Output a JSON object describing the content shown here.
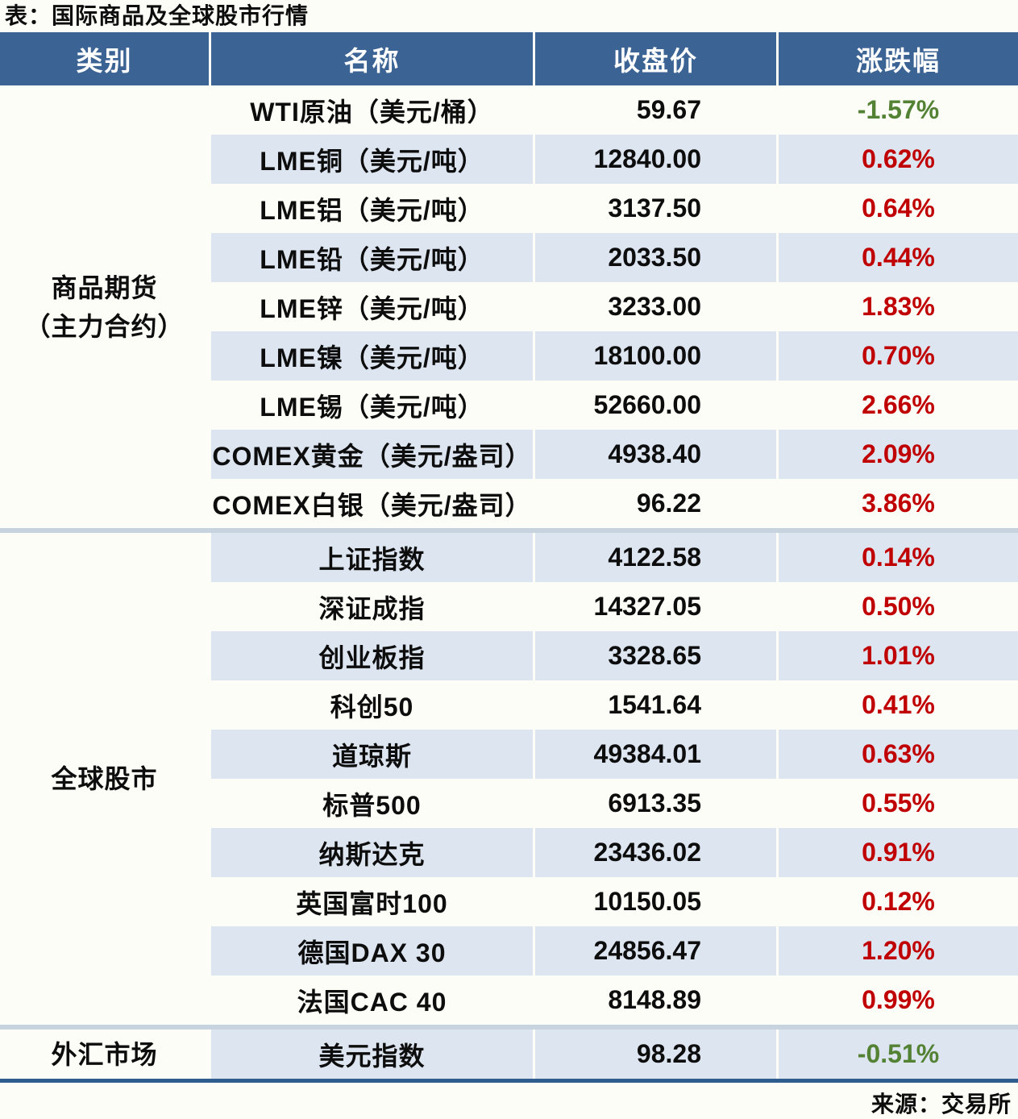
{
  "title": "表：国际商品及全球股市行情",
  "source": "来源：交易所",
  "colors": {
    "header_bg": "#3B6394",
    "header_text": "#FFFFFF",
    "row_alt_bg": "#DCE5F0",
    "page_bg": "#FDFDF8",
    "section_divider": "#C8D3E0",
    "bottom_border": "#2F5D90",
    "positive_red": "#C00000",
    "negative_green": "#548235",
    "text": "#0D0D0D"
  },
  "chart_data": {
    "type": "table",
    "title": "表：国际商品及全球股市行情",
    "source": "来源：交易所",
    "columns": [
      "类别",
      "名称",
      "收盘价",
      "涨跌幅"
    ],
    "column_keys": [
      "category",
      "name",
      "close",
      "change"
    ],
    "sections": [
      {
        "category": "商品期货（主力合约）",
        "category_lines": [
          "商品期货",
          "（主力合约）"
        ],
        "rows": [
          {
            "name": "WTI原油（美元/桶）",
            "close": "59.67",
            "change": "-1.57%"
          },
          {
            "name": "LME铜（美元/吨）",
            "close": "12840.00",
            "change": "0.62%"
          },
          {
            "name": "LME铝（美元/吨）",
            "close": "3137.50",
            "change": "0.64%"
          },
          {
            "name": "LME铅（美元/吨）",
            "close": "2033.50",
            "change": "0.44%"
          },
          {
            "name": "LME锌（美元/吨）",
            "close": "3233.00",
            "change": "1.83%"
          },
          {
            "name": "LME镍（美元/吨）",
            "close": "18100.00",
            "change": "0.70%"
          },
          {
            "name": "LME锡（美元/吨）",
            "close": "52660.00",
            "change": "2.66%"
          },
          {
            "name": "COMEX黄金（美元/盎司）",
            "close": "4938.40",
            "change": "2.09%"
          },
          {
            "name": "COMEX白银（美元/盎司）",
            "close": "96.22",
            "change": "3.86%"
          }
        ]
      },
      {
        "category": "全球股市",
        "category_lines": [
          "全球股市"
        ],
        "rows": [
          {
            "name": "上证指数",
            "close": "4122.58",
            "change": "0.14%"
          },
          {
            "name": "深证成指",
            "close": "14327.05",
            "change": "0.50%"
          },
          {
            "name": "创业板指",
            "close": "3328.65",
            "change": "1.01%"
          },
          {
            "name": "科创50",
            "close": "1541.64",
            "change": "0.41%"
          },
          {
            "name": "道琼斯",
            "close": "49384.01",
            "change": "0.63%"
          },
          {
            "name": "标普500",
            "close": "6913.35",
            "change": "0.55%"
          },
          {
            "name": "纳斯达克",
            "close": "23436.02",
            "change": "0.91%"
          },
          {
            "name": "英国富时100",
            "close": "10150.05",
            "change": "0.12%"
          },
          {
            "name": "德国DAX 30",
            "close": "24856.47",
            "change": "1.20%"
          },
          {
            "name": "法国CAC 40",
            "close": "8148.89",
            "change": "0.99%"
          }
        ]
      },
      {
        "category": "外汇市场",
        "category_lines": [
          "外汇市场"
        ],
        "rows": [
          {
            "name": "美元指数",
            "close": "98.28",
            "change": "-0.51%"
          }
        ]
      }
    ]
  }
}
